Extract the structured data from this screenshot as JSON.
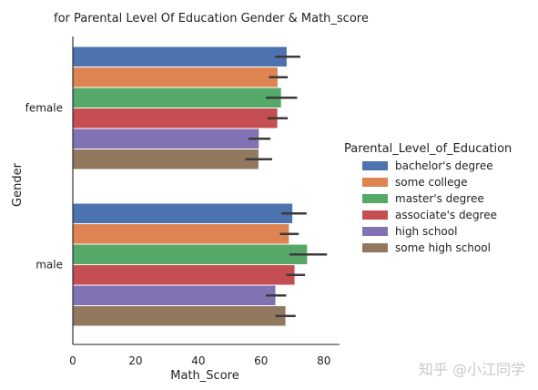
{
  "chart_data": {
    "type": "bar",
    "orientation": "horizontal",
    "title": "for Parental Level Of Education Gender & Math_score",
    "xlabel": "Math_Score",
    "ylabel": "Gender",
    "xlim": [
      0,
      85
    ],
    "xticks": [
      "0",
      "20",
      "40",
      "60",
      "80"
    ],
    "xtick_values": [
      0,
      20,
      40,
      60,
      80
    ],
    "categories": [
      "female",
      "male"
    ],
    "legend_title": "Parental_Level_of_Education",
    "legend_position": "center-right",
    "grid": false,
    "series": [
      {
        "name": "bachelor's degree",
        "color": "#4c72b0",
        "values": [
          68.3,
          70.1
        ],
        "ci": [
          [
            64.5,
            72.5
          ],
          [
            66.5,
            74.5
          ]
        ]
      },
      {
        "name": "some college",
        "color": "#dd8452",
        "values": [
          65.4,
          69.0
        ],
        "ci": [
          [
            62.5,
            68.5
          ],
          [
            66.0,
            72.0
          ]
        ]
      },
      {
        "name": "master's degree",
        "color": "#55a868",
        "values": [
          66.5,
          74.8
        ],
        "ci": [
          [
            61.5,
            71.5
          ],
          [
            69.0,
            81.0
          ]
        ]
      },
      {
        "name": "associate's degree",
        "color": "#c44e52",
        "values": [
          65.3,
          70.8
        ],
        "ci": [
          [
            62.0,
            68.5
          ],
          [
            68.0,
            74.0
          ]
        ]
      },
      {
        "name": "high school",
        "color": "#8172b3",
        "values": [
          59.4,
          64.7
        ],
        "ci": [
          [
            56.0,
            63.0
          ],
          [
            61.5,
            68.0
          ]
        ]
      },
      {
        "name": "some high school",
        "color": "#937860",
        "values": [
          59.3,
          67.9
        ],
        "ci": [
          [
            55.0,
            63.5
          ],
          [
            64.5,
            71.0
          ]
        ]
      }
    ]
  },
  "watermark": "知乎 @小江同学"
}
